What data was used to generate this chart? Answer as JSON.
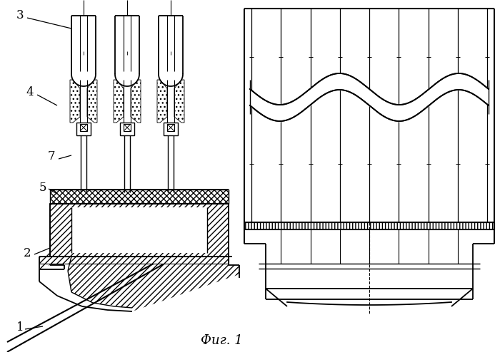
{
  "bg_color": "#ffffff",
  "line_color": "#000000",
  "figsize": [
    7.0,
    4.94
  ],
  "dpi": 100,
  "caption": "Фиг. 1"
}
